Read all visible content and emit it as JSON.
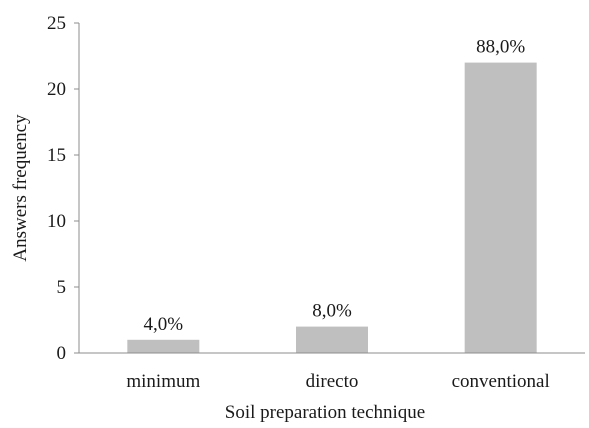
{
  "chart_data": {
    "type": "bar",
    "title": "",
    "xlabel": "Soil preparation technique",
    "ylabel": "Answers frequency",
    "categories": [
      "minimum",
      "directo",
      "conventional"
    ],
    "values": [
      1,
      2,
      22
    ],
    "data_labels": [
      "4,0%",
      "8,0%",
      "88,0%"
    ],
    "ylim": [
      0,
      25
    ],
    "yticks": [
      0,
      5,
      10,
      15,
      20,
      25
    ],
    "grid": false,
    "legend": "none",
    "colors": {
      "bar": "#bfbfbf",
      "axis": "#8c8c8c"
    }
  }
}
